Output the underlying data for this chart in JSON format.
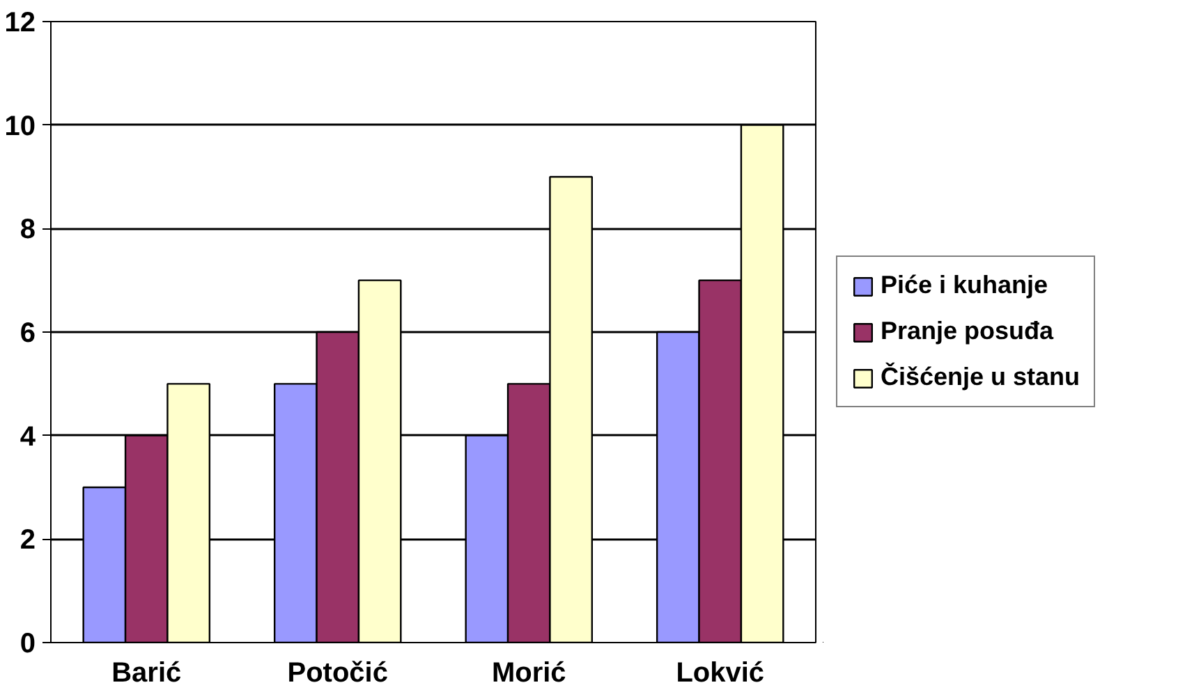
{
  "chart_data": {
    "type": "bar",
    "categories": [
      "Barić",
      "Potočić",
      "Morić",
      "Lokvić"
    ],
    "series": [
      {
        "name": "Piće i kuhanje",
        "color": "#9999ff",
        "values": [
          3,
          5,
          4,
          6
        ]
      },
      {
        "name": "Pranje posuđa",
        "color": "#993366",
        "values": [
          4,
          6,
          5,
          7
        ]
      },
      {
        "name": "Čišćenje u stanu",
        "color": "#ffffcc",
        "values": [
          5,
          7,
          9,
          10
        ]
      }
    ],
    "ylim": [
      0,
      12
    ],
    "yticks": [
      0,
      2,
      4,
      6,
      8,
      10,
      12
    ],
    "grid": "y",
    "legend": "right"
  }
}
